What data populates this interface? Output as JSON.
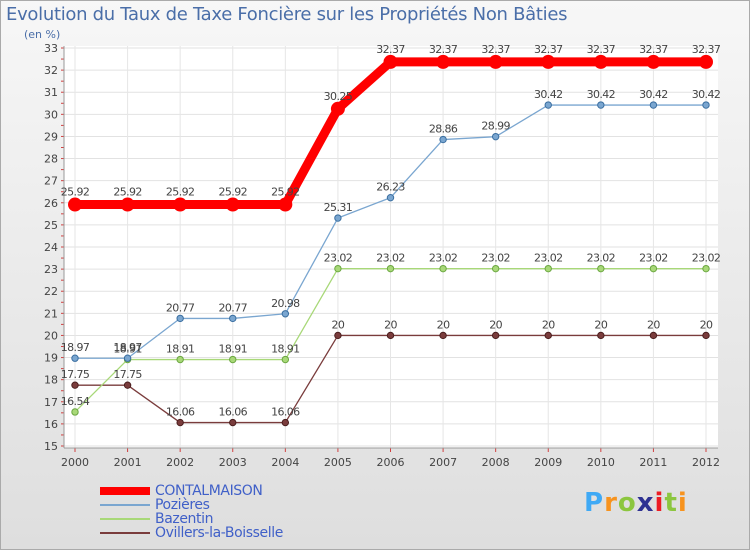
{
  "chart_data": {
    "type": "line",
    "title": "Evolution du Taux de Taxe Foncière sur les Propriétés Non Bâties",
    "ylabel": "(en %)",
    "xlabel": "",
    "categories": [
      "2000",
      "2001",
      "2002",
      "2003",
      "2004",
      "2005",
      "2006",
      "2007",
      "2008",
      "2009",
      "2010",
      "2011",
      "2012"
    ],
    "ylim": [
      15,
      33
    ],
    "yticks": [
      15,
      16,
      17,
      18,
      19,
      20,
      21,
      22,
      23,
      24,
      25,
      26,
      27,
      28,
      29,
      30,
      31,
      32,
      33
    ],
    "grid": true,
    "legend_position": "bottom-left",
    "series": [
      {
        "name": "CONTALMAISON",
        "color": "#ff0000",
        "values": [
          25.92,
          25.92,
          25.92,
          25.92,
          25.92,
          30.25,
          32.37,
          32.37,
          32.37,
          32.37,
          32.37,
          32.37,
          32.37
        ],
        "labels": [
          "25.92",
          "25.92",
          "25.92",
          "25.92",
          "25.92",
          "30.25",
          "32.37",
          "32.37",
          "32.37",
          "32.37",
          "32.37",
          "32.37",
          "32.37"
        ]
      },
      {
        "name": "Pozières",
        "color": "#7aa6d0",
        "values": [
          18.97,
          18.97,
          20.77,
          20.77,
          20.98,
          25.31,
          26.23,
          28.86,
          28.99,
          30.42,
          30.42,
          30.42,
          30.42
        ],
        "labels": [
          "18.97",
          "18.97",
          "20.77",
          "20.77",
          "20.98",
          "25.31",
          "26.23",
          "28.86",
          "28.99",
          "30.42",
          "30.42",
          "30.42",
          "30.42"
        ]
      },
      {
        "name": "Bazentin",
        "color": "#a8d878",
        "values": [
          16.54,
          18.91,
          18.91,
          18.91,
          18.91,
          23.02,
          23.02,
          23.02,
          23.02,
          23.02,
          23.02,
          23.02,
          23.02
        ],
        "labels": [
          "16.54",
          "18.91",
          "18.91",
          "18.91",
          "18.91",
          "23.02",
          "23.02",
          "23.02",
          "23.02",
          "23.02",
          "23.02",
          "23.02",
          "23.02"
        ]
      },
      {
        "name": "Ovillers-la-Boisselle",
        "color": "#7a3c3c",
        "values": [
          17.75,
          17.75,
          16.06,
          16.06,
          16.06,
          20,
          20,
          20,
          20,
          20,
          20,
          20,
          20
        ],
        "labels": [
          "17.75",
          "17.75",
          "16.06",
          "16.06",
          "16.06",
          "20",
          "20",
          "20",
          "20",
          "20",
          "20",
          "20",
          "20"
        ]
      }
    ]
  },
  "logo": {
    "letters": [
      "P",
      "r",
      "o",
      "x",
      "i",
      "t",
      "i"
    ],
    "colors": [
      "#3fa9f5",
      "#f7931e",
      "#8cc63f",
      "#2e3192",
      "#ed1c24",
      "#8cc63f",
      "#f7931e"
    ]
  }
}
